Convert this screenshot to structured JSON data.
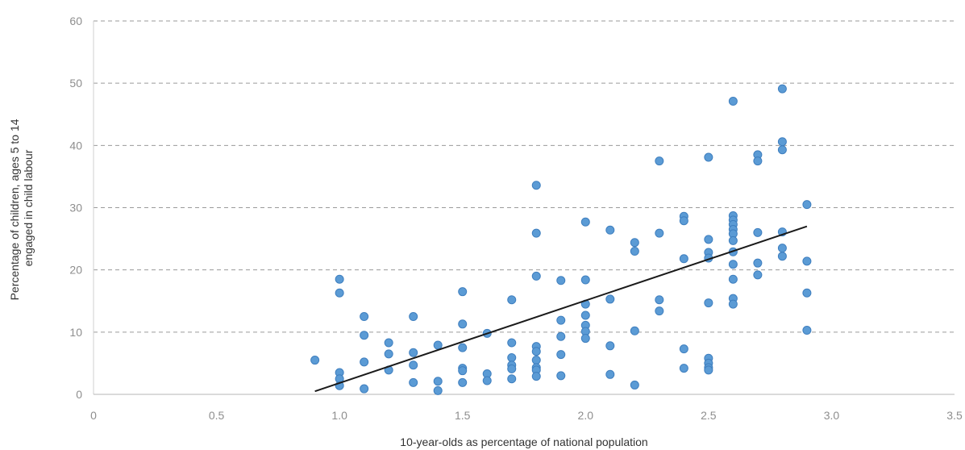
{
  "chart_data": {
    "type": "scatter",
    "title": "",
    "xlabel": "10-year-olds as percentage of national population",
    "ylabel_lines": [
      "Percentage of children, ages 5 to 14",
      "engaged in child labour"
    ],
    "xlim": [
      0,
      3.5
    ],
    "ylim": [
      0,
      60
    ],
    "x_ticks": [
      0,
      0.5,
      1.0,
      1.5,
      2.0,
      2.5,
      3.0,
      3.5
    ],
    "x_tick_labels": [
      "0",
      "0.5",
      "1.0",
      "1.5",
      "2.0",
      "2.5",
      "3.0",
      "3.5"
    ],
    "y_ticks": [
      0,
      10,
      20,
      30,
      40,
      50,
      60
    ],
    "y_tick_labels": [
      "0",
      "10",
      "20",
      "30",
      "40",
      "50",
      "60"
    ],
    "grid": "horizontal-dashed",
    "legend": "none",
    "colors": {
      "points": "#5b9bd5",
      "point_stroke": "#3f7fbf",
      "trend": "#1a1a1a",
      "grid": "#9a9a9a",
      "tick_text": "#8e8e8e",
      "axis_title": "#333333"
    },
    "trendline": {
      "x": [
        0.9,
        2.9
      ],
      "y": [
        0.5,
        27.0
      ]
    },
    "points": [
      [
        0.9,
        5.5
      ],
      [
        1.0,
        18.5
      ],
      [
        1.0,
        16.3
      ],
      [
        1.0,
        3.5
      ],
      [
        1.0,
        2.5
      ],
      [
        1.0,
        1.4
      ],
      [
        1.1,
        12.5
      ],
      [
        1.1,
        9.5
      ],
      [
        1.1,
        5.2
      ],
      [
        1.1,
        0.9
      ],
      [
        1.2,
        8.3
      ],
      [
        1.2,
        6.5
      ],
      [
        1.2,
        3.9
      ],
      [
        1.3,
        12.5
      ],
      [
        1.3,
        6.7
      ],
      [
        1.3,
        4.7
      ],
      [
        1.3,
        1.9
      ],
      [
        1.4,
        7.9
      ],
      [
        1.4,
        2.1
      ],
      [
        1.4,
        0.6
      ],
      [
        1.5,
        16.5
      ],
      [
        1.5,
        11.3
      ],
      [
        1.5,
        7.5
      ],
      [
        1.5,
        4.2
      ],
      [
        1.5,
        3.8
      ],
      [
        1.5,
        1.9
      ],
      [
        1.6,
        9.8
      ],
      [
        1.6,
        3.3
      ],
      [
        1.6,
        2.2
      ],
      [
        1.7,
        15.2
      ],
      [
        1.7,
        8.3
      ],
      [
        1.7,
        5.9
      ],
      [
        1.7,
        4.7
      ],
      [
        1.7,
        4.1
      ],
      [
        1.7,
        2.5
      ],
      [
        1.8,
        33.6
      ],
      [
        1.8,
        25.9
      ],
      [
        1.8,
        19.0
      ],
      [
        1.8,
        7.7
      ],
      [
        1.8,
        6.9
      ],
      [
        1.8,
        5.5
      ],
      [
        1.8,
        4.3
      ],
      [
        1.8,
        3.9
      ],
      [
        1.8,
        2.9
      ],
      [
        1.9,
        18.3
      ],
      [
        1.9,
        11.9
      ],
      [
        1.9,
        9.3
      ],
      [
        1.9,
        6.4
      ],
      [
        1.9,
        3.0
      ],
      [
        2.0,
        27.7
      ],
      [
        2.0,
        18.4
      ],
      [
        2.0,
        14.5
      ],
      [
        2.0,
        12.7
      ],
      [
        2.0,
        11.1
      ],
      [
        2.0,
        10.1
      ],
      [
        2.0,
        9.0
      ],
      [
        2.1,
        26.4
      ],
      [
        2.1,
        15.3
      ],
      [
        2.1,
        7.8
      ],
      [
        2.1,
        3.2
      ],
      [
        2.2,
        24.4
      ],
      [
        2.2,
        23.0
      ],
      [
        2.2,
        10.2
      ],
      [
        2.2,
        1.5
      ],
      [
        2.3,
        37.5
      ],
      [
        2.3,
        25.9
      ],
      [
        2.3,
        15.2
      ],
      [
        2.3,
        13.4
      ],
      [
        2.4,
        28.6
      ],
      [
        2.4,
        27.9
      ],
      [
        2.4,
        21.8
      ],
      [
        2.4,
        7.3
      ],
      [
        2.4,
        4.2
      ],
      [
        2.5,
        38.1
      ],
      [
        2.5,
        24.9
      ],
      [
        2.5,
        22.8
      ],
      [
        2.5,
        21.9
      ],
      [
        2.5,
        14.7
      ],
      [
        2.5,
        5.8
      ],
      [
        2.5,
        5.0
      ],
      [
        2.5,
        4.3
      ],
      [
        2.5,
        3.9
      ],
      [
        2.6,
        47.1
      ],
      [
        2.6,
        28.7
      ],
      [
        2.6,
        28.0
      ],
      [
        2.6,
        27.3
      ],
      [
        2.6,
        26.5
      ],
      [
        2.6,
        25.8
      ],
      [
        2.6,
        24.7
      ],
      [
        2.6,
        22.9
      ],
      [
        2.6,
        20.9
      ],
      [
        2.6,
        18.5
      ],
      [
        2.6,
        15.4
      ],
      [
        2.6,
        14.5
      ],
      [
        2.7,
        38.5
      ],
      [
        2.7,
        37.5
      ],
      [
        2.7,
        26.0
      ],
      [
        2.7,
        21.1
      ],
      [
        2.7,
        19.2
      ],
      [
        2.8,
        49.1
      ],
      [
        2.8,
        40.6
      ],
      [
        2.8,
        39.3
      ],
      [
        2.8,
        26.1
      ],
      [
        2.8,
        23.5
      ],
      [
        2.8,
        22.2
      ],
      [
        2.9,
        30.5
      ],
      [
        2.9,
        21.4
      ],
      [
        2.9,
        16.3
      ],
      [
        2.9,
        10.3
      ]
    ]
  }
}
